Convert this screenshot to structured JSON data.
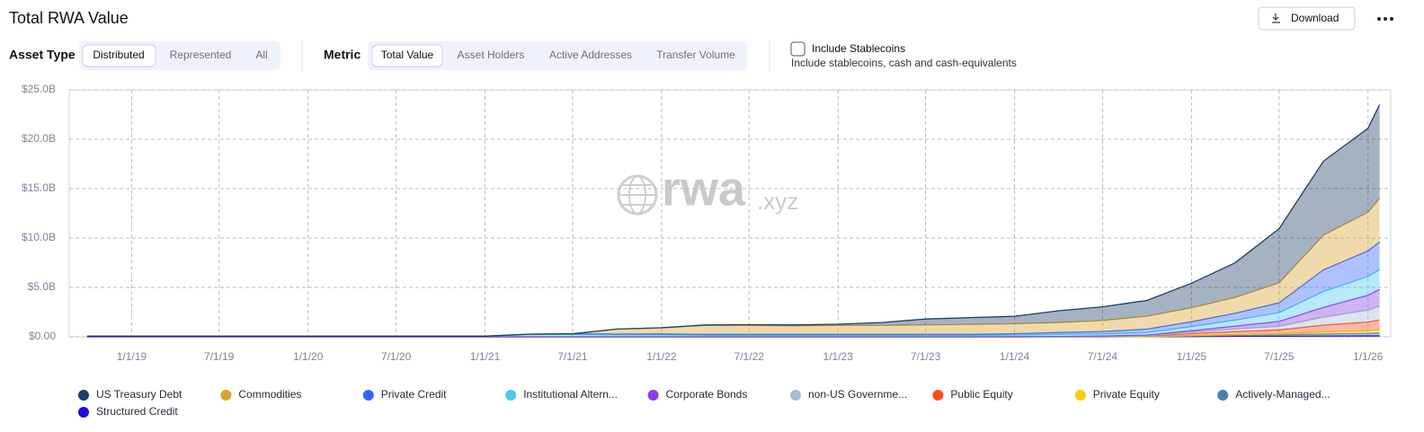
{
  "chart_data": {
    "type": "stacked_area",
    "title": "Total RWA Value",
    "watermark": [
      "rwa",
      ".xyz"
    ],
    "x": [
      "2018-10-01",
      "2019-01-01",
      "2019-04-01",
      "2019-07-01",
      "2019-10-01",
      "2020-01-01",
      "2020-04-01",
      "2020-07-01",
      "2020-10-01",
      "2021-01-01",
      "2021-04-01",
      "2021-07-01",
      "2021-10-01",
      "2022-01-01",
      "2022-04-01",
      "2022-07-01",
      "2022-10-01",
      "2023-01-01",
      "2023-04-01",
      "2023-07-01",
      "2023-10-01",
      "2024-01-01",
      "2024-04-01",
      "2024-07-01",
      "2024-10-01",
      "2025-01-01",
      "2025-04-01",
      "2025-07-01",
      "2025-10-01",
      "2026-01-01",
      "2026-01-25"
    ],
    "xlim": [
      "2018-08-25",
      "2026-02-17"
    ],
    "xticks": [
      {
        "value": "2019-01-01",
        "label": "1/1/19"
      },
      {
        "value": "2019-07-01",
        "label": "7/1/19"
      },
      {
        "value": "2020-01-01",
        "label": "1/1/20"
      },
      {
        "value": "2020-07-01",
        "label": "7/1/20"
      },
      {
        "value": "2021-01-01",
        "label": "1/1/21"
      },
      {
        "value": "2021-07-01",
        "label": "7/1/21"
      },
      {
        "value": "2022-01-01",
        "label": "1/1/22"
      },
      {
        "value": "2022-07-01",
        "label": "7/1/22"
      },
      {
        "value": "2023-01-01",
        "label": "1/1/23"
      },
      {
        "value": "2023-07-01",
        "label": "7/1/23"
      },
      {
        "value": "2024-01-01",
        "label": "1/1/24"
      },
      {
        "value": "2024-07-01",
        "label": "7/1/24"
      },
      {
        "value": "2025-01-01",
        "label": "1/1/25"
      },
      {
        "value": "2025-07-01",
        "label": "7/1/25"
      },
      {
        "value": "2026-01-01",
        "label": "1/1/26"
      }
    ],
    "ylim": [
      0,
      25
    ],
    "yticks": [
      {
        "value": 0,
        "label": "$0.00"
      },
      {
        "value": 5,
        "label": "$5.0B"
      },
      {
        "value": 10,
        "label": "$10.0B"
      },
      {
        "value": 15,
        "label": "$15.0B"
      },
      {
        "value": 20,
        "label": "$20.0B"
      },
      {
        "value": 25,
        "label": "$25.0B"
      }
    ],
    "grid": true,
    "series": [
      {
        "name": "US Treasury Debt",
        "color": "#1c3f66",
        "values": [
          0,
          0,
          0,
          0,
          0,
          0,
          0,
          0,
          0,
          0,
          0,
          0,
          0,
          0.02,
          0.05,
          0.08,
          0.1,
          0.12,
          0.3,
          0.6,
          0.7,
          0.75,
          1.2,
          1.4,
          1.6,
          2.5,
          3.5,
          5.5,
          7.5,
          8.5,
          9.5
        ]
      },
      {
        "name": "Commodities",
        "color": "#d9a32e",
        "values": [
          0,
          0,
          0,
          0,
          0,
          0,
          0,
          0,
          0,
          0,
          0,
          0,
          0.5,
          0.6,
          0.9,
          0.9,
          0.85,
          0.9,
          0.9,
          0.95,
          1.0,
          1.0,
          1.0,
          1.1,
          1.3,
          1.4,
          1.6,
          2.0,
          3.5,
          3.9,
          4.4
        ]
      },
      {
        "name": "Private Credit",
        "color": "#3366ff",
        "values": [
          0.01,
          0.01,
          0.01,
          0.01,
          0.01,
          0.01,
          0.01,
          0.01,
          0.01,
          0.01,
          0.01,
          0.05,
          0.08,
          0.1,
          0.1,
          0.1,
          0.1,
          0.1,
          0.1,
          0.1,
          0.1,
          0.15,
          0.2,
          0.25,
          0.35,
          0.5,
          0.7,
          1.0,
          2.2,
          2.6,
          2.8
        ]
      },
      {
        "name": "Institutional Altern...",
        "color": "#4cc9f0",
        "values": [
          0.05,
          0.05,
          0.05,
          0.05,
          0.05,
          0.05,
          0.05,
          0.05,
          0.05,
          0.05,
          0.25,
          0.25,
          0.2,
          0.2,
          0.15,
          0.15,
          0.15,
          0.15,
          0.15,
          0.15,
          0.15,
          0.15,
          0.2,
          0.2,
          0.25,
          0.4,
          0.6,
          0.9,
          1.6,
          1.9,
          2.0
        ]
      },
      {
        "name": "Corporate Bonds",
        "color": "#8b3ee6",
        "values": [
          0,
          0,
          0,
          0,
          0,
          0,
          0,
          0,
          0,
          0,
          0,
          0,
          0,
          0,
          0,
          0,
          0,
          0,
          0,
          0,
          0,
          0.02,
          0.03,
          0.04,
          0.05,
          0.15,
          0.3,
          0.5,
          1.0,
          1.5,
          1.7
        ]
      },
      {
        "name": "non-US Governme...",
        "color": "#a8bcd6",
        "values": [
          0,
          0,
          0,
          0,
          0,
          0,
          0,
          0,
          0,
          0,
          0,
          0,
          0,
          0,
          0,
          0,
          0,
          0,
          0,
          0,
          0,
          0,
          0,
          0.02,
          0.05,
          0.15,
          0.25,
          0.35,
          0.8,
          1.2,
          1.4
        ]
      },
      {
        "name": "Public Equity",
        "color": "#ff4d1a",
        "values": [
          0,
          0,
          0,
          0,
          0,
          0,
          0,
          0,
          0,
          0,
          0,
          0,
          0,
          0,
          0,
          0,
          0,
          0,
          0,
          0,
          0,
          0,
          0.01,
          0.02,
          0.05,
          0.2,
          0.3,
          0.4,
          0.7,
          0.9,
          1.0
        ]
      },
      {
        "name": "Private Equity",
        "color": "#f5d000",
        "values": [
          0,
          0,
          0,
          0,
          0,
          0,
          0,
          0,
          0,
          0,
          0,
          0,
          0,
          0,
          0,
          0,
          0,
          0,
          0,
          0,
          0,
          0,
          0,
          0.01,
          0.02,
          0.05,
          0.08,
          0.1,
          0.2,
          0.25,
          0.3
        ]
      },
      {
        "name": "Actively-Managed...",
        "color": "#4a80b5",
        "values": [
          0,
          0,
          0,
          0,
          0,
          0,
          0,
          0,
          0,
          0,
          0,
          0,
          0,
          0,
          0,
          0,
          0,
          0,
          0,
          0,
          0,
          0,
          0,
          0,
          0,
          0.05,
          0.1,
          0.15,
          0.2,
          0.25,
          0.3
        ]
      },
      {
        "name": "Structured Credit",
        "color": "#1a10e6",
        "values": [
          0,
          0,
          0,
          0,
          0,
          0,
          0,
          0,
          0,
          0,
          0,
          0,
          0,
          0,
          0,
          0,
          0,
          0,
          0,
          0,
          0,
          0,
          0,
          0,
          0.01,
          0.03,
          0.05,
          0.05,
          0.08,
          0.1,
          0.1
        ]
      }
    ]
  },
  "header": {
    "download": "Download"
  },
  "asset_type": {
    "label": "Asset Type",
    "options": [
      "Distributed",
      "Represented",
      "All"
    ]
  },
  "metric": {
    "label": "Metric",
    "options": [
      "Total Value",
      "Asset Holders",
      "Active Addresses",
      "Transfer Volume"
    ]
  },
  "stablecoins": {
    "label": "Include Stablecoins",
    "note": "Include stablecoins, cash and cash-equivalents"
  }
}
